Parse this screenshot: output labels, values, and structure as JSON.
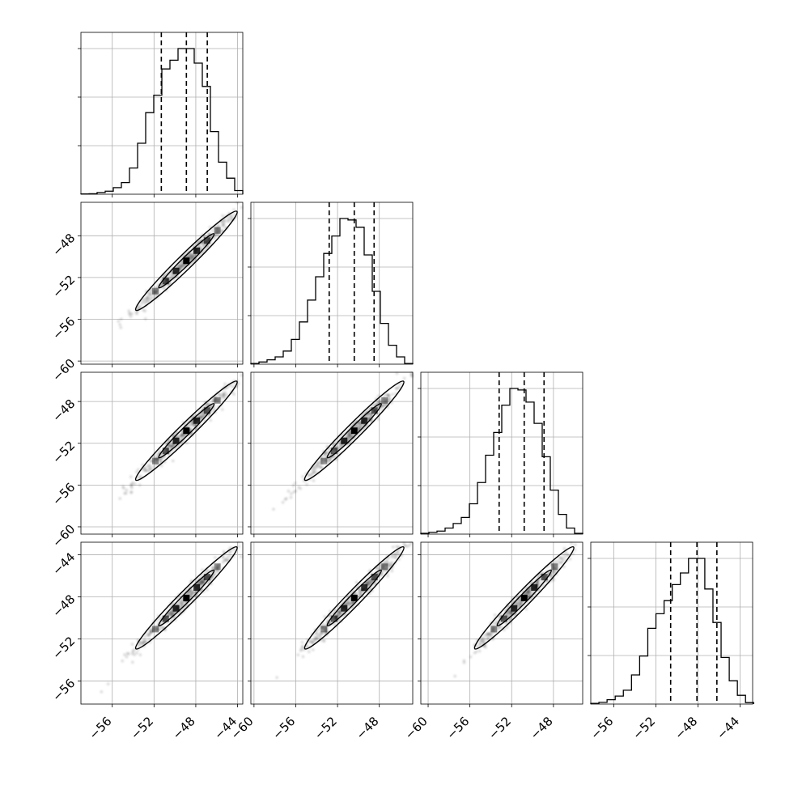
{
  "chart_data": {
    "type": "corner",
    "n_params": 4,
    "colors": {
      "line": "#000000",
      "grid": "#b0b0b0",
      "points": "#000000",
      "background": "#ffffff"
    },
    "grid": true,
    "params": [
      {
        "range": [
          -59,
          -43.5
        ],
        "ticks": [
          -56,
          -52,
          -48,
          -44
        ],
        "tick_labels": [
          "−56",
          "−52",
          "−48",
          "−44"
        ]
      },
      {
        "range": [
          -60.3,
          -44.8
        ],
        "ticks": [
          -60,
          -56,
          -52,
          -48
        ],
        "tick_labels": [
          "−60",
          "−56",
          "−52",
          "−48"
        ]
      },
      {
        "range": [
          -60.7,
          -45.2
        ],
        "ticks": [
          -60,
          -56,
          -52,
          -48
        ],
        "tick_labels": [
          "−60",
          "−56",
          "−52",
          "−48"
        ]
      },
      {
        "range": [
          -58.2,
          -42.8
        ],
        "ticks": [
          -56,
          -52,
          -48,
          -44
        ],
        "tick_labels": [
          "−56",
          "−52",
          "−48",
          "−44"
        ]
      }
    ],
    "quantiles": [
      [
        -51.3,
        -48.9,
        -46.9
      ],
      [
        -52.8,
        -50.4,
        -48.5
      ],
      [
        -53.2,
        -50.8,
        -48.9
      ],
      [
        -50.6,
        -48.1,
        -46.2
      ]
    ],
    "histograms": [
      {
        "bin_start": -59,
        "bin_width": 0.775,
        "counts": [
          0.2,
          0.3,
          1.2,
          2.1,
          4.5,
          8,
          18,
          35,
          56,
          68,
          86,
          92,
          100,
          100,
          90,
          74,
          43,
          22,
          11,
          2.5
        ]
      },
      {
        "bin_start": -60.3,
        "bin_width": 0.775,
        "counts": [
          0.5,
          1.5,
          3,
          5,
          9,
          17,
          29,
          44,
          60,
          76,
          88,
          100,
          99,
          94,
          75,
          50,
          28,
          13,
          5,
          0.5
        ]
      },
      {
        "bin_start": -60.7,
        "bin_width": 0.775,
        "counts": [
          0.5,
          1.2,
          2,
          4,
          7,
          11,
          20,
          34,
          52,
          67,
          85,
          96,
          95,
          87,
          73,
          51,
          29,
          13,
          4,
          0.5
        ]
      },
      {
        "bin_start": -58.2,
        "bin_width": 0.775,
        "counts": [
          0.5,
          1.2,
          3,
          5.5,
          9.5,
          20,
          33,
          52,
          62,
          71,
          82,
          90,
          100,
          100,
          79,
          56,
          32,
          16,
          6,
          1
        ]
      }
    ]
  }
}
